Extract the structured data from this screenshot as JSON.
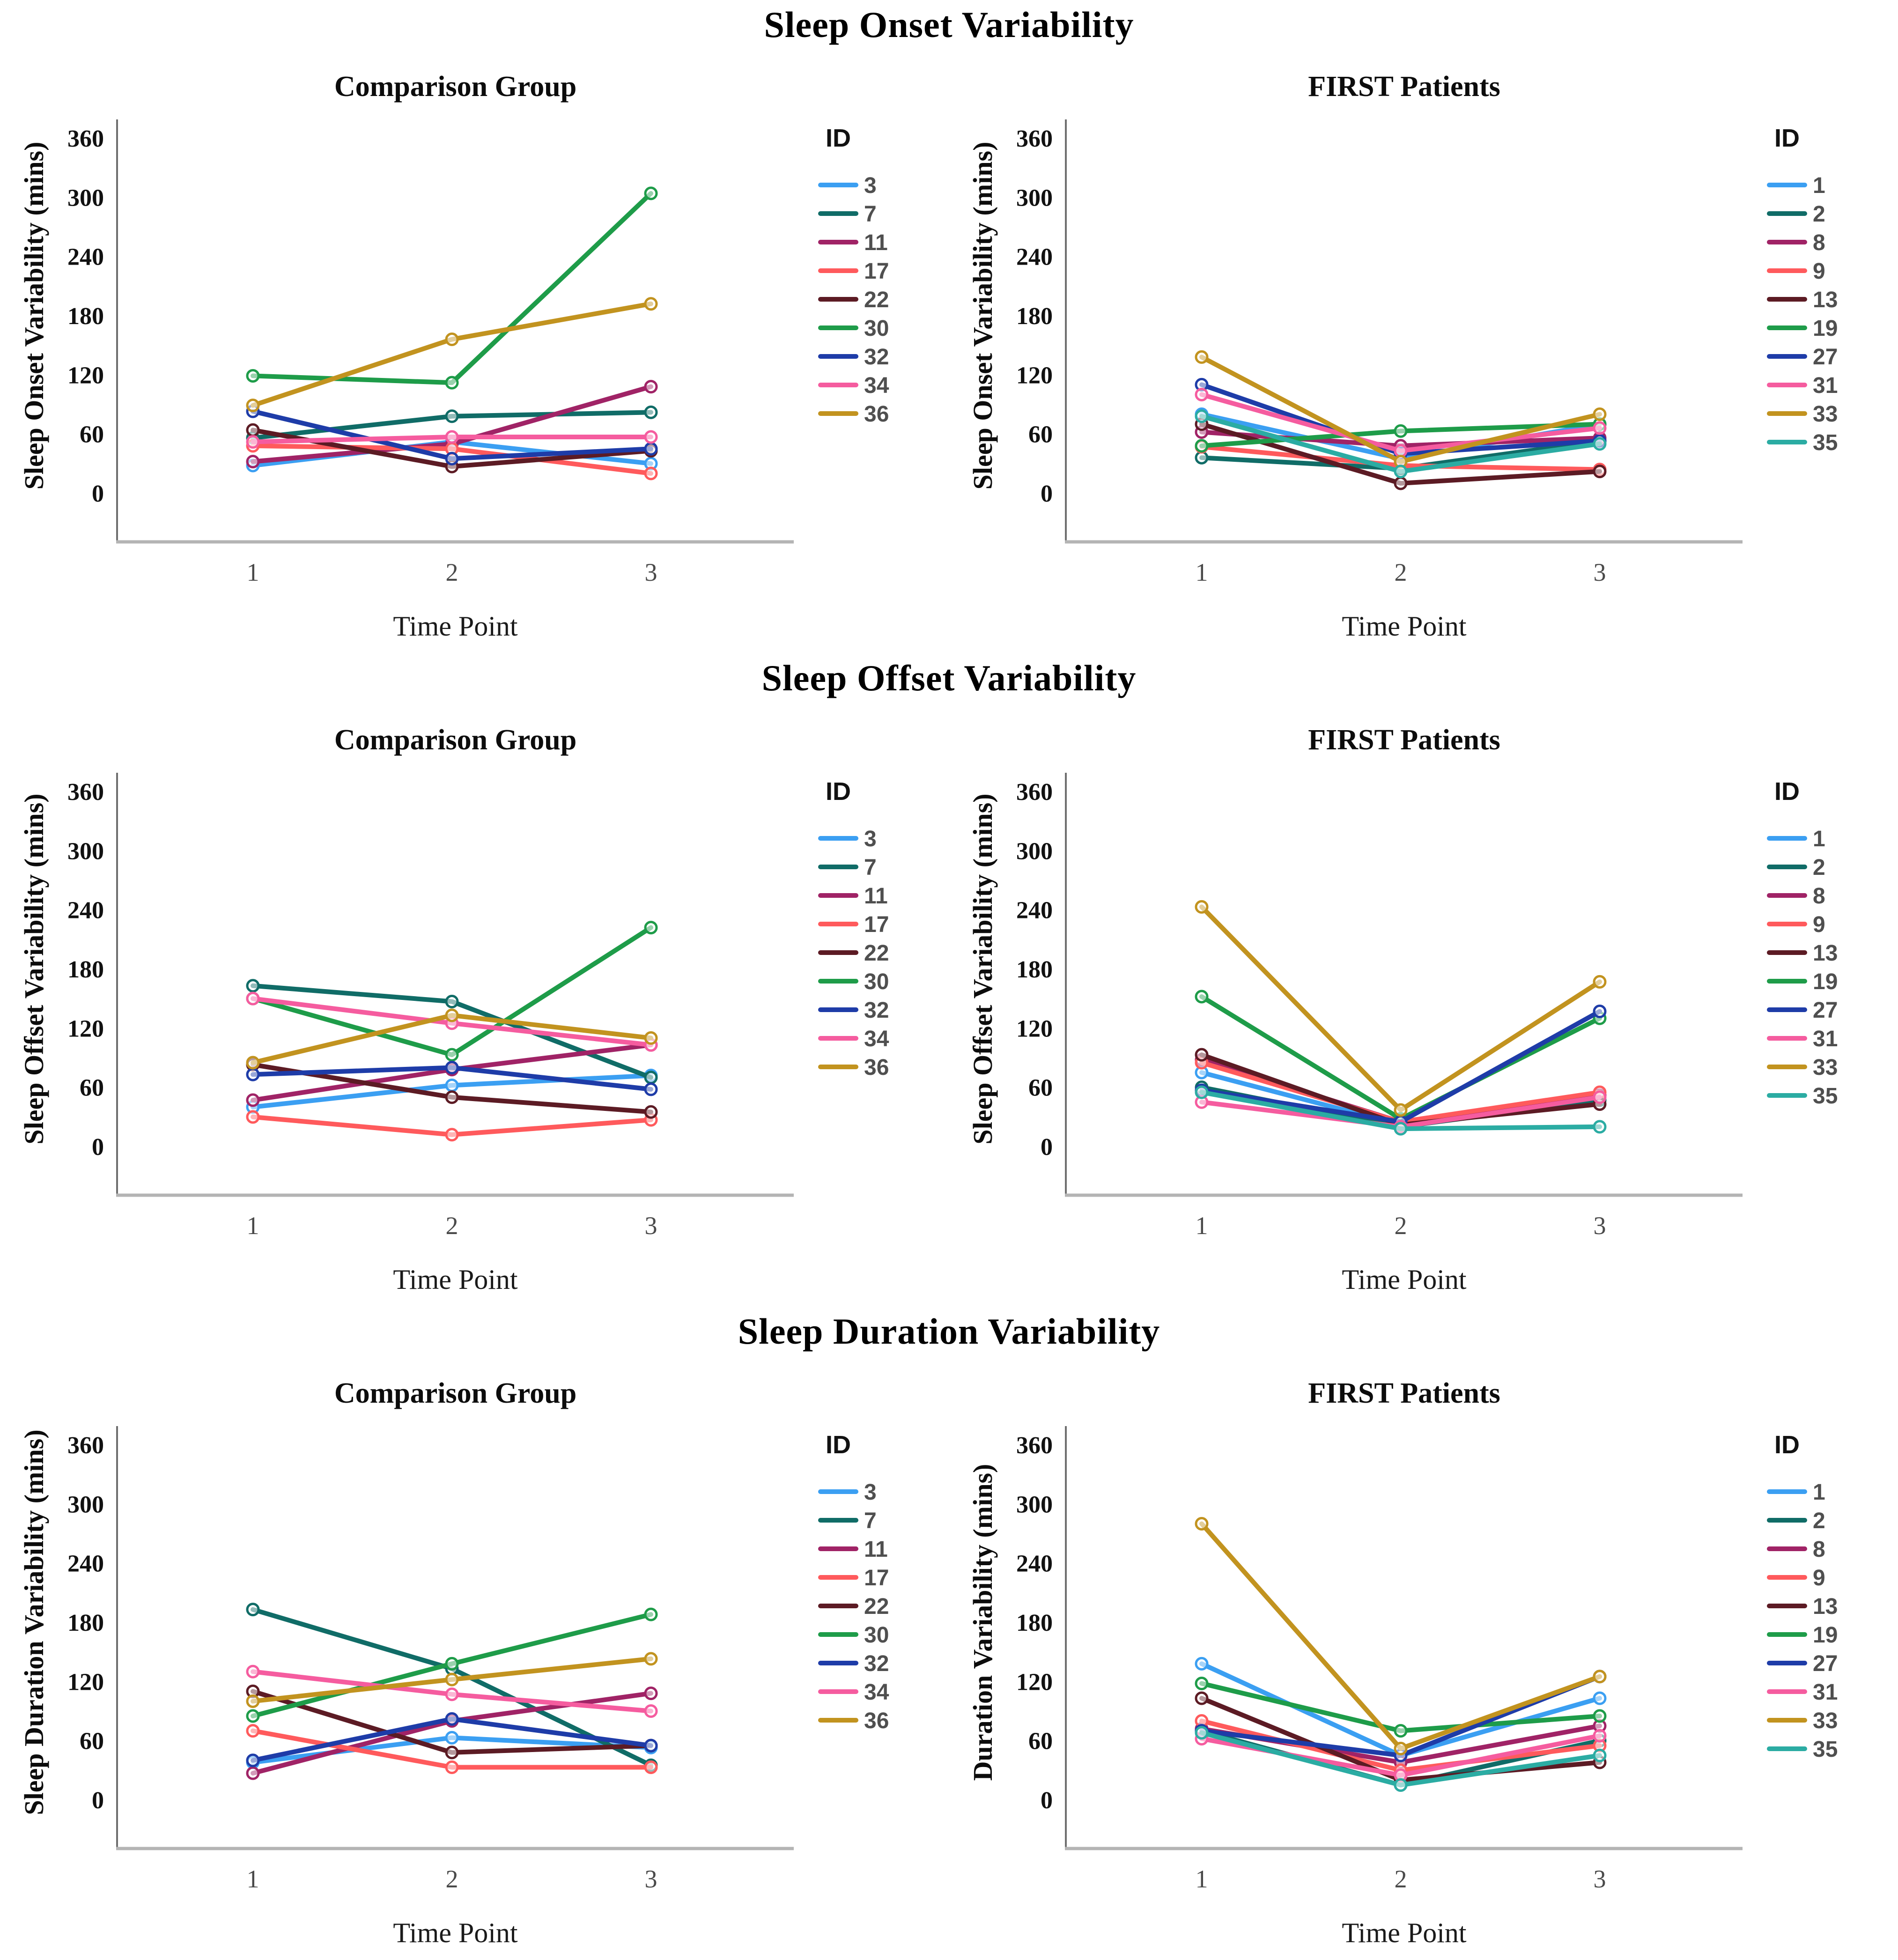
{
  "figure_title_note": "Three-row multipanel line figure",
  "legend_title": "ID",
  "x_label": "Time Point",
  "x_ticks": [
    "1",
    "2",
    "3"
  ],
  "y_ticks": [
    0,
    60,
    120,
    180,
    240,
    300,
    360
  ],
  "palette": {
    "light_blue": "#3B9FF2",
    "dark_teal": "#106C67",
    "magenta": "#A02366",
    "salmon": "#FF5A5C",
    "maroon": "#5C1B24",
    "green": "#1E9C49",
    "navy": "#1E3CA8",
    "pink": "#F55C9F",
    "gold": "#C2931F",
    "teal": "#2BACA3"
  },
  "chart_data": [
    {
      "type": "line",
      "row": 0,
      "panel": "left",
      "row_title": "Sleep Onset Variability",
      "title": "Comparison Group",
      "ylabel": "Sleep Onset Variability (mins)",
      "xlabel": "Time Point",
      "legend_title": "ID",
      "x": [
        1,
        2,
        3
      ],
      "ylim": [
        0,
        380
      ],
      "series": [
        {
          "name": "3",
          "color": "#3B9FF2",
          "values": [
            28,
            52,
            30
          ]
        },
        {
          "name": "7",
          "color": "#106C67",
          "values": [
            56,
            78,
            82
          ]
        },
        {
          "name": "11",
          "color": "#A02366",
          "values": [
            32,
            50,
            108
          ]
        },
        {
          "name": "17",
          "color": "#FF5A5C",
          "values": [
            48,
            45,
            20
          ]
        },
        {
          "name": "22",
          "color": "#5C1B24",
          "values": [
            64,
            27,
            43
          ]
        },
        {
          "name": "30",
          "color": "#1E9C49",
          "values": [
            119,
            112,
            304
          ]
        },
        {
          "name": "32",
          "color": "#1E3CA8",
          "values": [
            83,
            35,
            45
          ]
        },
        {
          "name": "34",
          "color": "#F55C9F",
          "values": [
            52,
            57,
            57
          ]
        },
        {
          "name": "36",
          "color": "#C2931F",
          "values": [
            89,
            156,
            192
          ]
        }
      ]
    },
    {
      "type": "line",
      "row": 0,
      "panel": "right",
      "row_title": "Sleep Onset Variability",
      "title": "FIRST Patients",
      "ylabel": "Sleep Onset Variability (mins)",
      "xlabel": "Time Point",
      "legend_title": "ID",
      "x": [
        1,
        2,
        3
      ],
      "ylim": [
        0,
        380
      ],
      "series": [
        {
          "name": "1",
          "color": "#3B9FF2",
          "values": [
            80,
            35,
            70
          ]
        },
        {
          "name": "2",
          "color": "#106C67",
          "values": [
            36,
            25,
            53
          ]
        },
        {
          "name": "8",
          "color": "#A02366",
          "values": [
            62,
            48,
            56
          ]
        },
        {
          "name": "9",
          "color": "#FF5A5C",
          "values": [
            47,
            28,
            24
          ]
        },
        {
          "name": "13",
          "color": "#5C1B24",
          "values": [
            70,
            10,
            22
          ]
        },
        {
          "name": "19",
          "color": "#1E9C49",
          "values": [
            48,
            63,
            70
          ]
        },
        {
          "name": "27",
          "color": "#1E3CA8",
          "values": [
            110,
            40,
            53
          ]
        },
        {
          "name": "31",
          "color": "#F55C9F",
          "values": [
            100,
            43,
            66
          ]
        },
        {
          "name": "33",
          "color": "#C2931F",
          "values": [
            138,
            32,
            80
          ]
        },
        {
          "name": "35",
          "color": "#2BACA3",
          "values": [
            78,
            22,
            50
          ]
        }
      ]
    },
    {
      "type": "line",
      "row": 1,
      "panel": "left",
      "row_title": "Sleep Offset Variability",
      "title": "Comparison Group",
      "ylabel": "Sleep Offset Variability (mins)",
      "xlabel": "Time Point",
      "legend_title": "ID",
      "x": [
        1,
        2,
        3
      ],
      "ylim": [
        0,
        380
      ],
      "series": [
        {
          "name": "3",
          "color": "#3B9FF2",
          "values": [
            40,
            62,
            72
          ]
        },
        {
          "name": "7",
          "color": "#106C67",
          "values": [
            163,
            147,
            70
          ]
        },
        {
          "name": "11",
          "color": "#A02366",
          "values": [
            47,
            78,
            103
          ]
        },
        {
          "name": "17",
          "color": "#FF5A5C",
          "values": [
            30,
            12,
            27
          ]
        },
        {
          "name": "22",
          "color": "#5C1B24",
          "values": [
            83,
            50,
            35
          ]
        },
        {
          "name": "30",
          "color": "#1E9C49",
          "values": [
            150,
            93,
            222
          ]
        },
        {
          "name": "32",
          "color": "#1E3CA8",
          "values": [
            73,
            80,
            58
          ]
        },
        {
          "name": "34",
          "color": "#F55C9F",
          "values": [
            150,
            125,
            103
          ]
        },
        {
          "name": "36",
          "color": "#C2931F",
          "values": [
            85,
            133,
            110
          ]
        }
      ]
    },
    {
      "type": "line",
      "row": 1,
      "panel": "right",
      "row_title": "Sleep Offset Variability",
      "title": "FIRST Patients",
      "ylabel": "Sleep Offset Variability (mins)",
      "xlabel": "Time Point",
      "legend_title": "ID",
      "x": [
        1,
        2,
        3
      ],
      "ylim": [
        0,
        380
      ],
      "series": [
        {
          "name": "1",
          "color": "#3B9FF2",
          "values": [
            75,
            22,
            47
          ]
        },
        {
          "name": "2",
          "color": "#106C67",
          "values": [
            60,
            20,
            47
          ]
        },
        {
          "name": "8",
          "color": "#A02366",
          "values": [
            88,
            25,
            52
          ]
        },
        {
          "name": "9",
          "color": "#FF5A5C",
          "values": [
            85,
            25,
            55
          ]
        },
        {
          "name": "13",
          "color": "#5C1B24",
          "values": [
            93,
            22,
            43
          ]
        },
        {
          "name": "19",
          "color": "#1E9C49",
          "values": [
            152,
            28,
            130
          ]
        },
        {
          "name": "27",
          "color": "#1E3CA8",
          "values": [
            57,
            25,
            137
          ]
        },
        {
          "name": "31",
          "color": "#F55C9F",
          "values": [
            45,
            20,
            50
          ]
        },
        {
          "name": "33",
          "color": "#C2931F",
          "values": [
            243,
            37,
            167
          ]
        },
        {
          "name": "35",
          "color": "#2BACA3",
          "values": [
            55,
            18,
            20
          ]
        }
      ]
    },
    {
      "type": "line",
      "row": 2,
      "panel": "left",
      "row_title": "Sleep Duration Variability",
      "title": "Comparison Group",
      "ylabel": "Sleep Duration Variability (mins)",
      "xlabel": "Time Point",
      "legend_title": "ID",
      "x": [
        1,
        2,
        3
      ],
      "ylim": [
        0,
        380
      ],
      "series": [
        {
          "name": "3",
          "color": "#3B9FF2",
          "values": [
            38,
            63,
            53
          ]
        },
        {
          "name": "7",
          "color": "#106C67",
          "values": [
            193,
            133,
            35
          ]
        },
        {
          "name": "11",
          "color": "#A02366",
          "values": [
            27,
            80,
            108
          ]
        },
        {
          "name": "17",
          "color": "#FF5A5C",
          "values": [
            70,
            33,
            33
          ]
        },
        {
          "name": "22",
          "color": "#5C1B24",
          "values": [
            110,
            48,
            55
          ]
        },
        {
          "name": "30",
          "color": "#1E9C49",
          "values": [
            85,
            138,
            188
          ]
        },
        {
          "name": "32",
          "color": "#1E3CA8",
          "values": [
            40,
            82,
            55
          ]
        },
        {
          "name": "34",
          "color": "#F55C9F",
          "values": [
            130,
            107,
            90
          ]
        },
        {
          "name": "36",
          "color": "#C2931F",
          "values": [
            100,
            122,
            143
          ]
        }
      ]
    },
    {
      "type": "line",
      "row": 2,
      "panel": "right",
      "row_title": "Sleep Duration Variability",
      "title": "FIRST Patients",
      "ylabel": "Duration Variability (mins)",
      "xlabel": "Time Point",
      "legend_title": "ID",
      "x": [
        1,
        2,
        3
      ],
      "ylim": [
        0,
        380
      ],
      "series": [
        {
          "name": "1",
          "color": "#3B9FF2",
          "values": [
            138,
            45,
            103
          ]
        },
        {
          "name": "2",
          "color": "#106C67",
          "values": [
            70,
            15,
            60
          ]
        },
        {
          "name": "8",
          "color": "#A02366",
          "values": [
            72,
            38,
            75
          ]
        },
        {
          "name": "9",
          "color": "#FF5A5C",
          "values": [
            80,
            30,
            55
          ]
        },
        {
          "name": "13",
          "color": "#5C1B24",
          "values": [
            103,
            20,
            38
          ]
        },
        {
          "name": "19",
          "color": "#1E9C49",
          "values": [
            118,
            70,
            85
          ]
        },
        {
          "name": "27",
          "color": "#1E3CA8",
          "values": [
            70,
            45,
            125
          ]
        },
        {
          "name": "31",
          "color": "#F55C9F",
          "values": [
            62,
            25,
            65
          ]
        },
        {
          "name": "33",
          "color": "#C2931F",
          "values": [
            280,
            52,
            125
          ]
        },
        {
          "name": "35",
          "color": "#2BACA3",
          "values": [
            68,
            15,
            45
          ]
        }
      ]
    }
  ]
}
